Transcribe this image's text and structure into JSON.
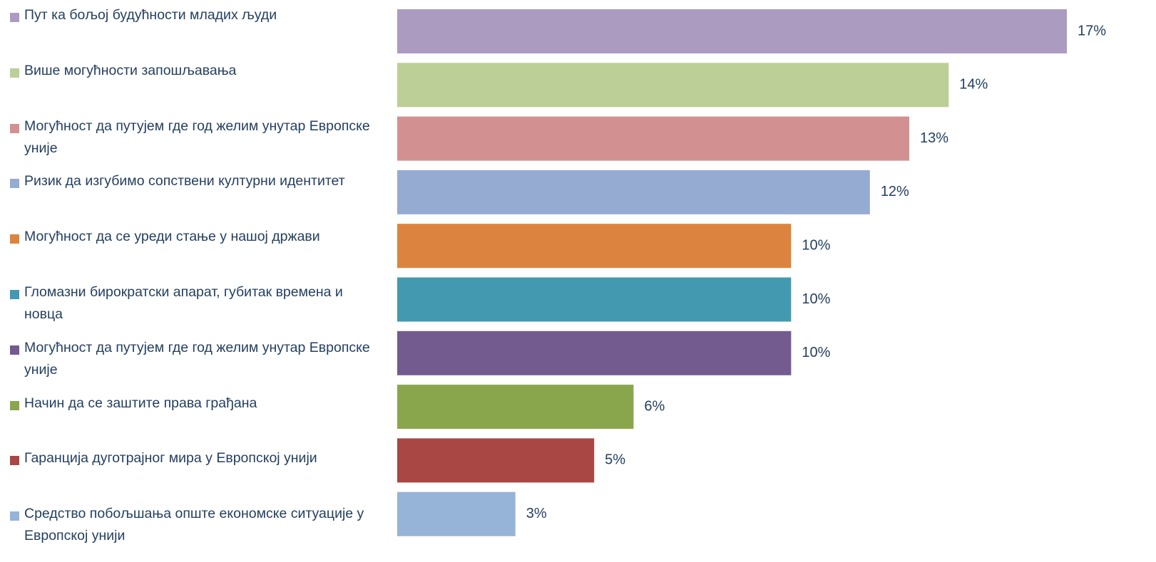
{
  "chart_data": {
    "type": "bar",
    "orientation": "horizontal",
    "categories": [
      "Пут ка бољој будућности младих људи",
      "Више могућности запошљавања",
      "Могућност да путујем где год желим унутар Европске уније",
      "Ризик да изгубимо сопствени културни идентитет",
      "Могућност да се уреди стање у нашој држави",
      "Гломазни бирократски апарат, губитак времена и новца",
      "Могућност да путујем где год желим унутар Европске уније",
      "Начин да се заштите права грађана",
      "Гаранција дуготрајног мира у Европској унији",
      "Средство побољшања опште економске ситуације у Европској унији"
    ],
    "values": [
      17,
      14,
      13,
      12,
      10,
      10,
      10,
      6,
      5,
      3
    ],
    "value_labels": [
      "17%",
      "14%",
      "13%",
      "12%",
      "10%",
      "10%",
      "10%",
      "6%",
      "5%",
      "3%"
    ],
    "colors": [
      "#ab9bc0",
      "#bbcf96",
      "#d29190",
      "#95abd2",
      "#dc843f",
      "#4399b0",
      "#735b90",
      "#8aa64c",
      "#a94744",
      "#96b3d8"
    ],
    "legend": "left"
  }
}
